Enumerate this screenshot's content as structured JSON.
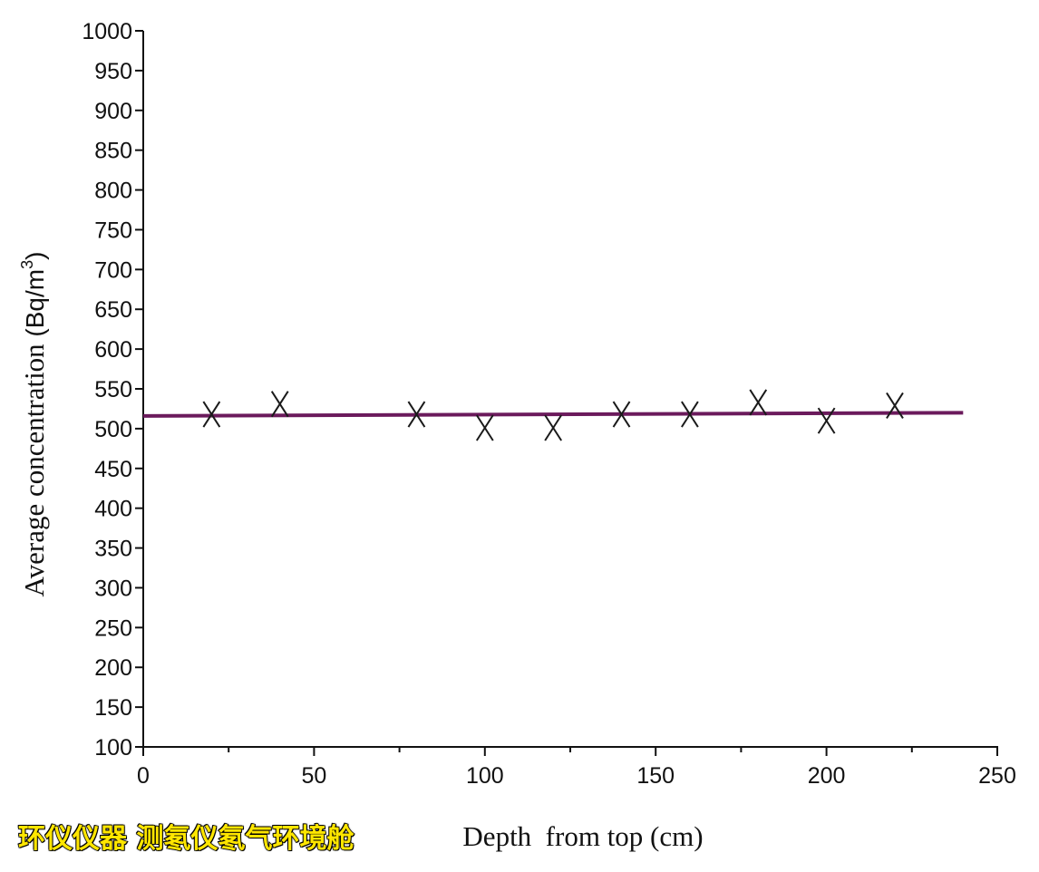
{
  "chart_data": {
    "type": "scatter",
    "xlabel": "Depth  from top (cm)",
    "ylabel_main": "Average concentration ",
    "ylabel_unit": "(Bq/m",
    "ylabel_sup": "3",
    "ylabel_close": ")",
    "xlim": [
      0,
      250
    ],
    "ylim": [
      100,
      1000
    ],
    "xticks": [
      0,
      50,
      100,
      150,
      200,
      250
    ],
    "xminor": [
      25,
      75,
      125,
      175,
      225
    ],
    "yticks": [
      100,
      150,
      200,
      250,
      300,
      350,
      400,
      450,
      500,
      550,
      600,
      650,
      700,
      750,
      800,
      850,
      900,
      950,
      1000
    ],
    "grid": false,
    "marker": "x",
    "series": [
      {
        "x": [
          20,
          40,
          80,
          100,
          120,
          140,
          160,
          180,
          200,
          220
        ],
        "y": [
          518,
          531,
          518,
          501,
          501,
          518,
          518,
          533,
          510,
          529
        ],
        "color": "#1a1a1a"
      }
    ],
    "fit_line": {
      "x": [
        0,
        240
      ],
      "y": [
        516,
        520
      ],
      "color": "#6b1a5c"
    }
  },
  "watermark": "环仪仪器 测氡仪氡气环境舱"
}
